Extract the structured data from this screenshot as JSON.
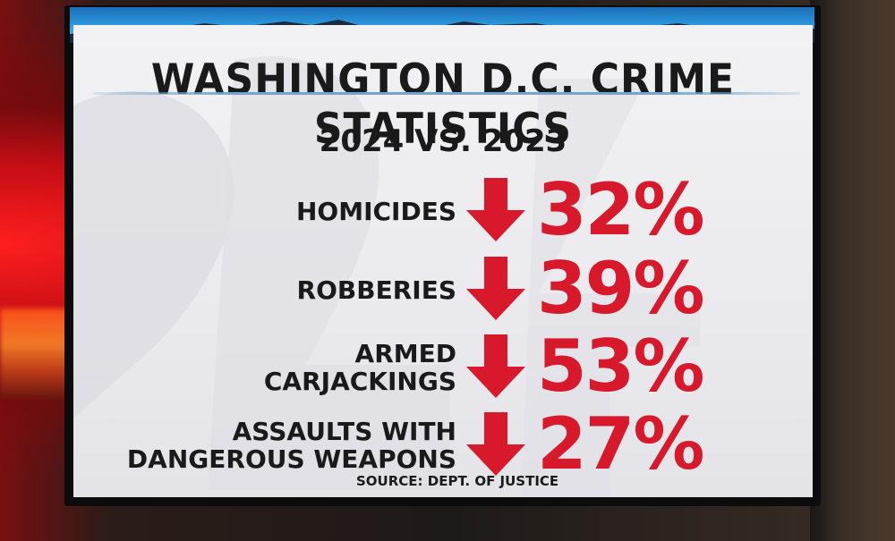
{
  "graphic": {
    "title": "WASHINGTON D.C. CRIME STATISTICS",
    "subtitle": "2024 VS. 2023",
    "source": "SOURCE: DEPT. OF JUSTICE",
    "accent_color": "#d7192b",
    "stats": [
      {
        "label_lines": [
          "HOMICIDES"
        ],
        "direction": "down",
        "change": "32%"
      },
      {
        "label_lines": [
          "ROBBERIES"
        ],
        "direction": "down",
        "change": "39%"
      },
      {
        "label_lines": [
          "ARMED",
          "CARJACKINGS"
        ],
        "direction": "down",
        "change": "53%"
      },
      {
        "label_lines": [
          "ASSAULTS WITH",
          "DANGEROUS WEAPONS"
        ],
        "direction": "down",
        "change": "27%"
      }
    ]
  }
}
